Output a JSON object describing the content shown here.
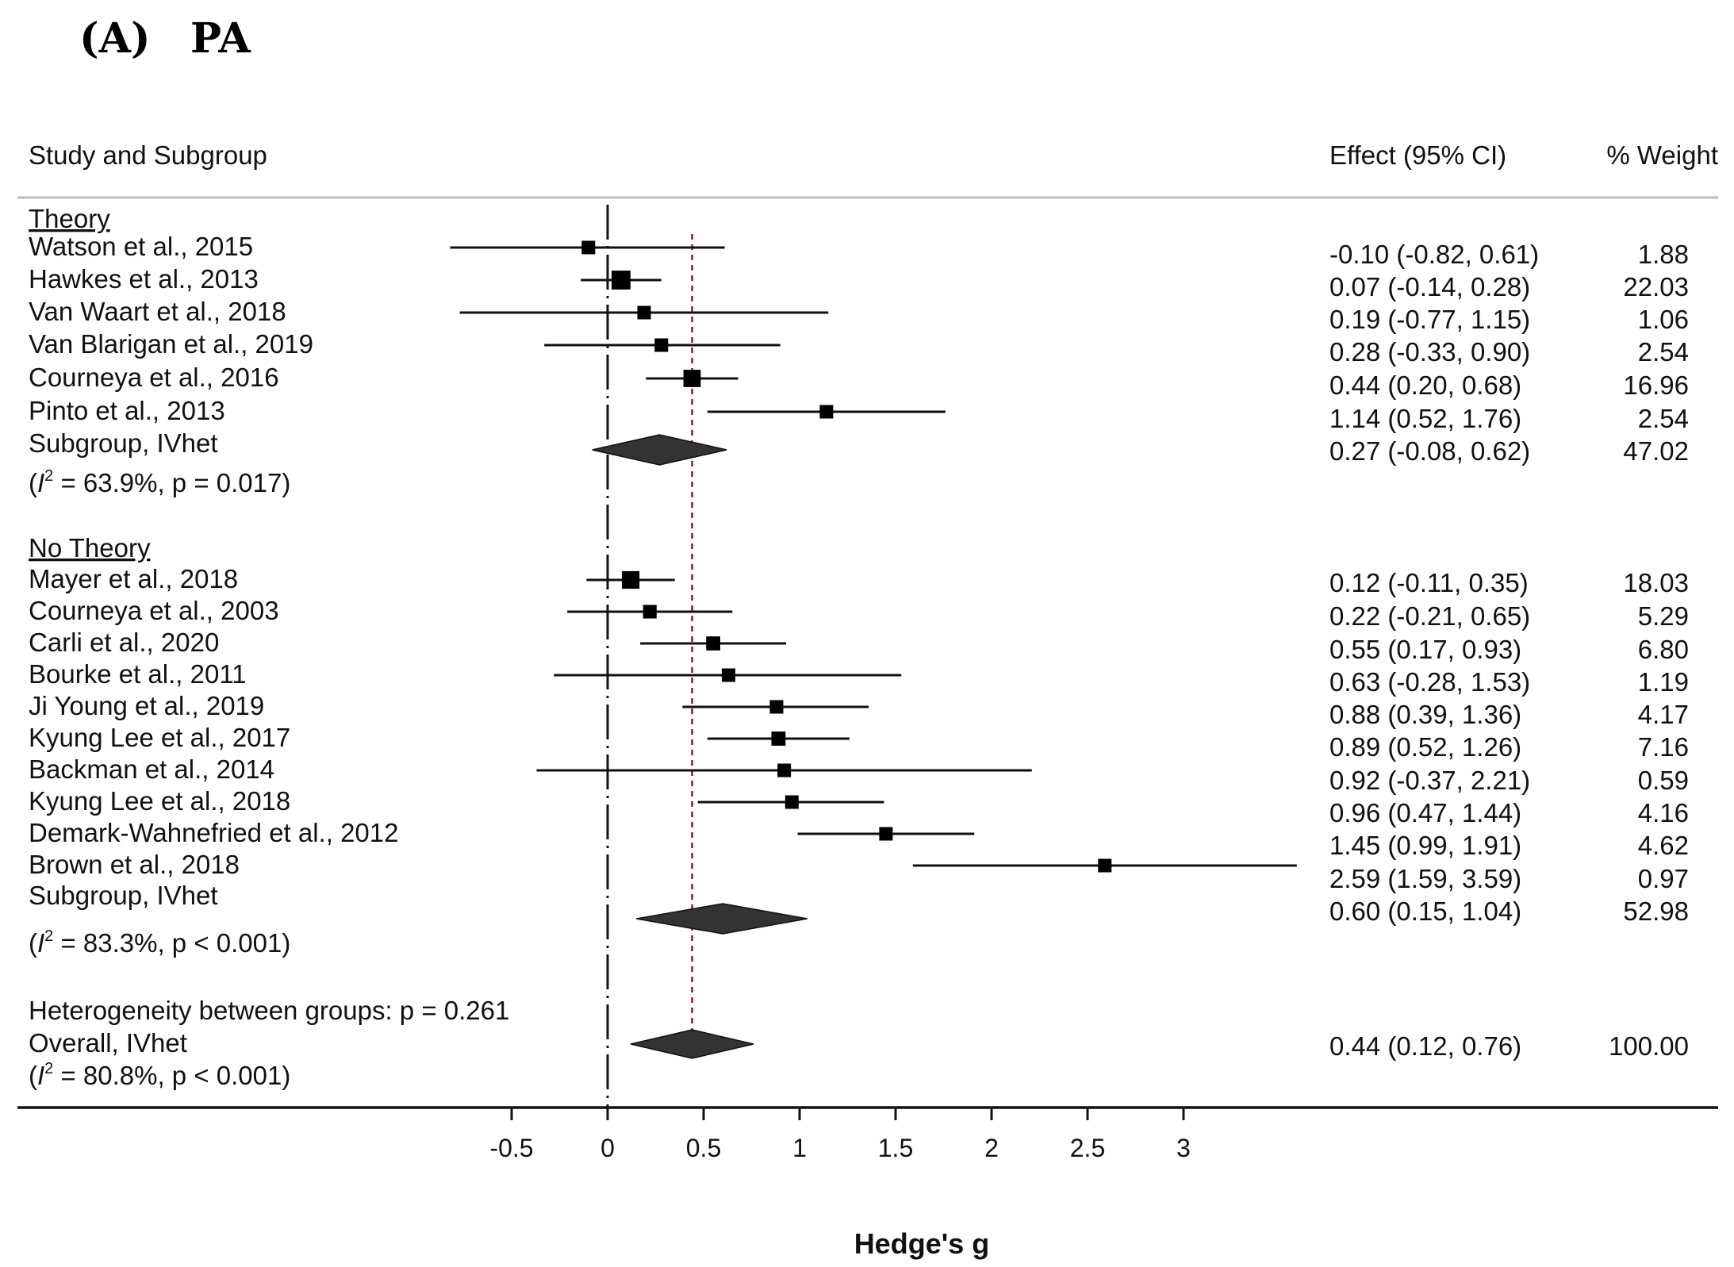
{
  "panel_label": "(A)",
  "panel_title": "PA",
  "columns": {
    "study": "Study and Subgroup",
    "effect": "Effect (95% CI)",
    "weight": "% Weight"
  },
  "colors": {
    "line": "#111111",
    "marker": "#000000",
    "diamond": "#333333",
    "overall_line": "#8b1a1a",
    "header_rule": "#bbbbbb"
  },
  "chart_data": {
    "type": "forest",
    "xlabel": "Hedge's g",
    "xlim": [
      -0.5,
      3.6
    ],
    "xticks": [
      -0.5,
      0,
      0.5,
      1,
      1.5,
      2,
      2.5,
      3
    ],
    "xtick_labels": [
      "-0.5",
      "0",
      "0.5",
      "1",
      "1.5",
      "2",
      "2.5",
      "3"
    ],
    "null_value": 0,
    "overall_value": 0.44,
    "heterogeneity_between": "Heterogeneity between groups: p = 0.261",
    "subgroups": [
      {
        "name": "Theory",
        "studies": [
          {
            "label": "Watson et al., 2015",
            "est": -0.1,
            "lo": -0.82,
            "hi": 0.61,
            "ci_text": "-0.10 (-0.82, 0.61)",
            "weight": "1.88",
            "w": 1.88
          },
          {
            "label": "Hawkes et al., 2013",
            "est": 0.07,
            "lo": -0.14,
            "hi": 0.28,
            "ci_text": "0.07 (-0.14, 0.28)",
            "weight": "22.03",
            "w": 22.03
          },
          {
            "label": "Van Waart et al., 2018",
            "est": 0.19,
            "lo": -0.77,
            "hi": 1.15,
            "ci_text": "0.19 (-0.77, 1.15)",
            "weight": "1.06",
            "w": 1.06
          },
          {
            "label": "Van Blarigan et al., 2019",
            "est": 0.28,
            "lo": -0.33,
            "hi": 0.9,
            "ci_text": "0.28 (-0.33, 0.90)",
            "weight": "2.54",
            "w": 2.54
          },
          {
            "label": "Courneya et al., 2016",
            "est": 0.44,
            "lo": 0.2,
            "hi": 0.68,
            "ci_text": "0.44 (0.20, 0.68)",
            "weight": "16.96",
            "w": 16.96
          },
          {
            "label": "Pinto et al., 2013",
            "est": 1.14,
            "lo": 0.52,
            "hi": 1.76,
            "ci_text": "1.14 (0.52, 1.76)",
            "weight": "2.54",
            "w": 2.54
          }
        ],
        "summary": {
          "label": "Subgroup, IVhet",
          "est": 0.27,
          "lo": -0.08,
          "hi": 0.62,
          "ci_text": "0.27 (-0.08, 0.62)",
          "weight": "47.02"
        },
        "i2_text": "= 63.9%, p = 0.017)"
      },
      {
        "name": "No Theory",
        "studies": [
          {
            "label": "Mayer et al., 2018",
            "est": 0.12,
            "lo": -0.11,
            "hi": 0.35,
            "ci_text": "0.12 (-0.11, 0.35)",
            "weight": "18.03",
            "w": 18.03
          },
          {
            "label": "Courneya et al., 2003",
            "est": 0.22,
            "lo": -0.21,
            "hi": 0.65,
            "ci_text": "0.22 (-0.21, 0.65)",
            "weight": "5.29",
            "w": 5.29
          },
          {
            "label": "Carli et al., 2020",
            "est": 0.55,
            "lo": 0.17,
            "hi": 0.93,
            "ci_text": "0.55 (0.17, 0.93)",
            "weight": "6.80",
            "w": 6.8
          },
          {
            "label": "Bourke et al., 2011",
            "est": 0.63,
            "lo": -0.28,
            "hi": 1.53,
            "ci_text": "0.63 (-0.28, 1.53)",
            "weight": "1.19",
            "w": 1.19
          },
          {
            "label": "Ji Young et al., 2019",
            "est": 0.88,
            "lo": 0.39,
            "hi": 1.36,
            "ci_text": "0.88 (0.39, 1.36)",
            "weight": "4.17",
            "w": 4.17
          },
          {
            "label": "Kyung Lee et al., 2017",
            "est": 0.89,
            "lo": 0.52,
            "hi": 1.26,
            "ci_text": "0.89 (0.52, 1.26)",
            "weight": "7.16",
            "w": 7.16
          },
          {
            "label": "Backman et al., 2014",
            "est": 0.92,
            "lo": -0.37,
            "hi": 2.21,
            "ci_text": "0.92 (-0.37, 2.21)",
            "weight": "0.59",
            "w": 0.59
          },
          {
            "label": "Kyung Lee et al., 2018",
            "est": 0.96,
            "lo": 0.47,
            "hi": 1.44,
            "ci_text": "0.96 (0.47, 1.44)",
            "weight": "4.16",
            "w": 4.16
          },
          {
            "label": "Demark-Wahnefried et al., 2012",
            "est": 1.45,
            "lo": 0.99,
            "hi": 1.91,
            "ci_text": "1.45 (0.99, 1.91)",
            "weight": "4.62",
            "w": 4.62
          },
          {
            "label": "Brown et al., 2018",
            "est": 2.59,
            "lo": 1.59,
            "hi": 3.59,
            "ci_text": "2.59 (1.59, 3.59)",
            "weight": "0.97",
            "w": 0.97
          }
        ],
        "summary": {
          "label": "Subgroup, IVhet",
          "est": 0.6,
          "lo": 0.15,
          "hi": 1.04,
          "ci_text": "0.60 (0.15, 1.04)",
          "weight": "52.98"
        },
        "i2_text": "= 83.3%, p < 0.001)"
      }
    ],
    "overall": {
      "label": "Overall, IVhet",
      "est": 0.44,
      "lo": 0.12,
      "hi": 0.76,
      "ci_text": "0.44 (0.12, 0.76)",
      "weight": "100.00",
      "i2_text": "= 80.8%, p < 0.001)"
    }
  }
}
